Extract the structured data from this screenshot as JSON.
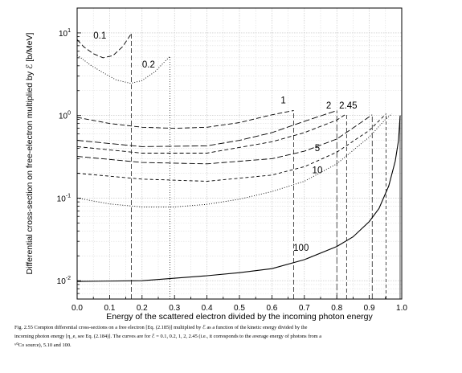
{
  "caption": {
    "line1": "Fig. 2.55  Compton differential cross-sections on a free electron [Eq. (2.185)] multiplied by ℰ as a function of the kinetic energy divided by the",
    "line2": "incoming photon energy [η_e, see Eq. (2.184)]. The curves are for ℰ = 0.1, 0.2, 1, 2, 2.45 (i.e., it corresponds to the average energy of photons from a",
    "line3": "⁶⁰Co source), 5.10 and 100."
  },
  "chart_data": {
    "type": "line",
    "xlabel": "Energy of the scattered electron divided by the incoming photon energy",
    "ylabel": "Differential cross-section on free-electron multiplied by ℰ [b/MeV]",
    "xlim": [
      0,
      1.0
    ],
    "ylim": [
      0.006,
      20
    ],
    "yscale": "log",
    "grid": true,
    "x_ticks": [
      "0.0",
      "0.1",
      "0.2",
      "0.3",
      "0.4",
      "0.5",
      "0.6",
      "0.7",
      "0.8",
      "0.9",
      "1.0"
    ],
    "y_ticks": [
      {
        "base": "10",
        "exp": "1",
        "value": 10
      },
      {
        "base": "10",
        "exp": "0",
        "value": 1
      },
      {
        "base": "10",
        "exp": "-1",
        "value": 0.1
      },
      {
        "base": "10",
        "exp": "-2",
        "value": 0.01
      }
    ],
    "series": [
      {
        "name": "0.1",
        "label_at": [
          0.07,
          8.5
        ],
        "dash": "6,3",
        "cutoff": 0.167,
        "x": [
          0,
          0.02,
          0.05,
          0.08,
          0.11,
          0.14,
          0.167
        ],
        "y": [
          8.3,
          6.8,
          5.6,
          5.0,
          5.3,
          6.8,
          9.8
        ]
      },
      {
        "name": "0.2",
        "label_at": [
          0.22,
          3.8
        ],
        "dash": "1,2",
        "cutoff": 0.286,
        "x": [
          0,
          0.04,
          0.08,
          0.12,
          0.165,
          0.2,
          0.24,
          0.27,
          0.286
        ],
        "y": [
          5.4,
          4.1,
          3.3,
          2.7,
          2.45,
          2.65,
          3.4,
          4.5,
          5.2
        ]
      },
      {
        "name": "1",
        "label_at": [
          0.635,
          1.4
        ],
        "dash": "6,3",
        "cutoff": 0.667,
        "x": [
          0,
          0.1,
          0.2,
          0.3,
          0.4,
          0.5,
          0.6,
          0.667
        ],
        "y": [
          0.95,
          0.8,
          0.72,
          0.7,
          0.72,
          0.82,
          1.02,
          1.15
        ]
      },
      {
        "name": "2",
        "label_at": [
          0.775,
          1.22
        ],
        "dash": "8,3",
        "cutoff": 0.8,
        "x": [
          0,
          0.2,
          0.4,
          0.5,
          0.6,
          0.7,
          0.8
        ],
        "y": [
          0.5,
          0.42,
          0.43,
          0.5,
          0.62,
          0.85,
          1.15
        ]
      },
      {
        "name": "2.45",
        "label_at": [
          0.835,
          1.22
        ],
        "dash": "5,3",
        "cutoff": 0.83,
        "x": [
          0,
          0.2,
          0.4,
          0.6,
          0.7,
          0.8,
          0.83
        ],
        "y": [
          0.42,
          0.35,
          0.35,
          0.48,
          0.62,
          0.88,
          1.05
        ]
      },
      {
        "name": "5",
        "label_at": [
          0.74,
          0.37
        ],
        "dash": "7,3",
        "cutoff": 0.909,
        "x": [
          0,
          0.2,
          0.4,
          0.6,
          0.7,
          0.8,
          0.88,
          0.909
        ],
        "y": [
          0.32,
          0.27,
          0.26,
          0.3,
          0.37,
          0.52,
          0.85,
          1.02
        ]
      },
      {
        "name": "10",
        "label_at": [
          0.74,
          0.2
        ],
        "dash": "4,3",
        "cutoff": 0.952,
        "x": [
          0,
          0.2,
          0.4,
          0.6,
          0.7,
          0.8,
          0.9,
          0.952
        ],
        "y": [
          0.2,
          0.17,
          0.16,
          0.19,
          0.24,
          0.36,
          0.66,
          1.05
        ]
      },
      {
        "name": "100",
        "label_at": [
          0.69,
          0.023
        ],
        "dash": "",
        "cutoff": 0.995,
        "x": [
          0,
          0.2,
          0.4,
          0.5,
          0.6,
          0.7,
          0.8,
          0.85,
          0.9,
          0.93,
          0.96,
          0.98,
          0.99,
          0.995
        ],
        "y": [
          0.0098,
          0.01,
          0.0115,
          0.0125,
          0.014,
          0.018,
          0.026,
          0.034,
          0.052,
          0.075,
          0.14,
          0.28,
          0.5,
          1.0
        ]
      },
      {
        "name": "",
        "label_at": null,
        "dash": "1,2",
        "cutoff": null,
        "x": [
          0,
          0.1,
          0.2,
          0.3,
          0.4,
          0.5,
          0.6,
          0.7,
          0.8,
          0.9,
          0.95,
          0.97
        ],
        "y": [
          0.1,
          0.085,
          0.078,
          0.078,
          0.084,
          0.097,
          0.12,
          0.16,
          0.26,
          0.55,
          0.9,
          1.05
        ]
      }
    ]
  }
}
